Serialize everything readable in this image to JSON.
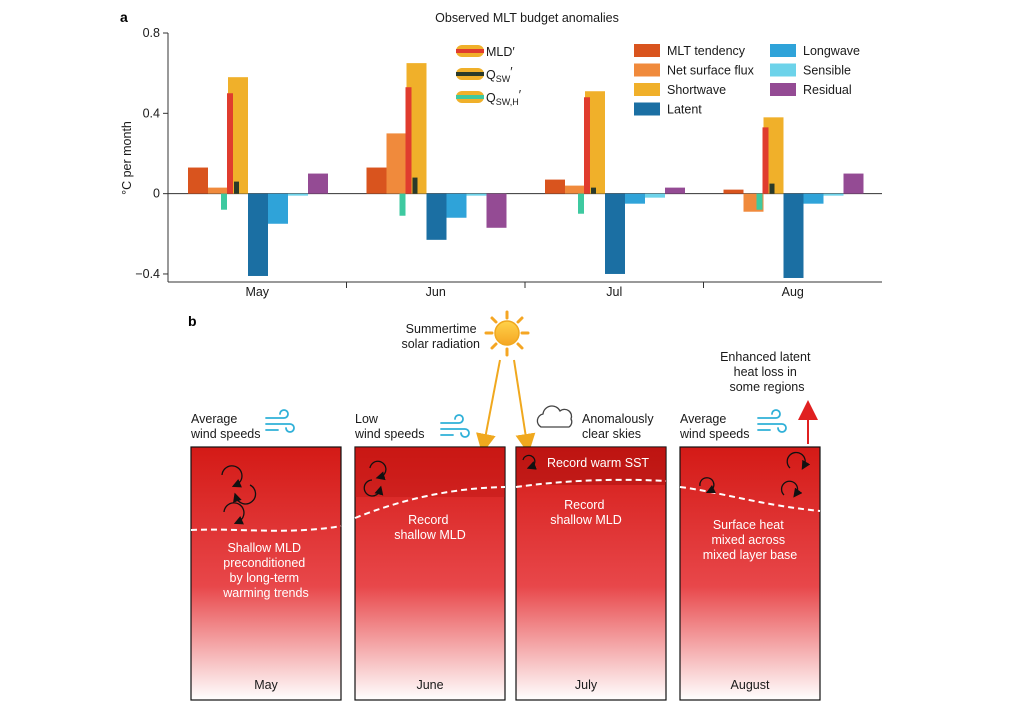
{
  "chart_data": {
    "type": "bar",
    "title": "Observed MLT budget anomalies",
    "panel_label": "a",
    "ylabel": "°C per month",
    "ylim": [
      -0.44,
      0.8
    ],
    "yticks": [
      -0.4,
      0,
      0.4,
      0.8
    ],
    "ytick_labels": [
      "−0.4",
      "0",
      "0.4",
      "0.8"
    ],
    "categories": [
      "May",
      "Jun",
      "Jul",
      "Aug"
    ],
    "series": [
      {
        "name": "MLT tendency",
        "color": "#d9541e",
        "values": [
          0.13,
          0.13,
          0.07,
          0.02
        ]
      },
      {
        "name": "Net surface flux",
        "color": "#f08a3c",
        "values": [
          0.03,
          0.3,
          0.04,
          -0.09
        ]
      },
      {
        "name": "Shortwave",
        "color": "#f0b02a",
        "values": [
          0.58,
          0.65,
          0.51,
          0.38
        ]
      },
      {
        "name": "Latent",
        "color": "#1b6fa3",
        "values": [
          -0.41,
          -0.23,
          -0.4,
          -0.42
        ]
      },
      {
        "name": "Longwave",
        "color": "#2fa3d9",
        "values": [
          -0.15,
          -0.12,
          -0.05,
          -0.05
        ]
      },
      {
        "name": "Sensible",
        "color": "#6dd3ea",
        "values": [
          -0.01,
          -0.01,
          -0.02,
          -0.01
        ]
      },
      {
        "name": "Residual",
        "color": "#944b94",
        "values": [
          0.1,
          -0.17,
          0.03,
          0.1
        ]
      }
    ],
    "inset_series": [
      {
        "name": "MLD′",
        "color": "#e03c2e",
        "values": [
          0.5,
          0.53,
          0.48,
          0.33
        ]
      },
      {
        "name": "Q_SW′",
        "color": "#2a3a2a",
        "values": [
          0.06,
          0.08,
          0.03,
          0.05
        ]
      },
      {
        "name": "Q_SW,H′",
        "color": "#3ec9a0",
        "values": [
          -0.08,
          -0.11,
          -0.1,
          -0.08
        ]
      }
    ],
    "inset_legend": {
      "mld": "MLD′",
      "qsw_main": "Q",
      "qsw_sub": "SW",
      "qswh_main": "Q",
      "qswh_sub": "SW,H",
      "prime": "′"
    },
    "legend_position": "top-right"
  },
  "panel_b": {
    "label": "b",
    "solar_label": [
      "Summertime",
      "solar radiation"
    ],
    "latent_label": [
      "Enhanced latent",
      "heat loss in",
      "some regions"
    ],
    "boxes": [
      {
        "month": "May",
        "wind": [
          "Average",
          "wind speeds"
        ],
        "text": [
          "Shallow MLD",
          "preconditioned",
          "by long-term",
          "warming trends"
        ]
      },
      {
        "month": "June",
        "wind": [
          "Low",
          "wind speeds"
        ],
        "text": [
          "Record",
          "shallow MLD"
        ]
      },
      {
        "month": "July",
        "wind": [
          "Anomalously",
          "clear skies"
        ],
        "top_text": "Record warm SST",
        "text": [
          "Record",
          "shallow MLD"
        ]
      },
      {
        "month": "August",
        "wind": [
          "Average",
          "wind speeds"
        ],
        "text": [
          "Surface heat",
          "mixed across",
          "mixed layer base"
        ]
      }
    ]
  }
}
